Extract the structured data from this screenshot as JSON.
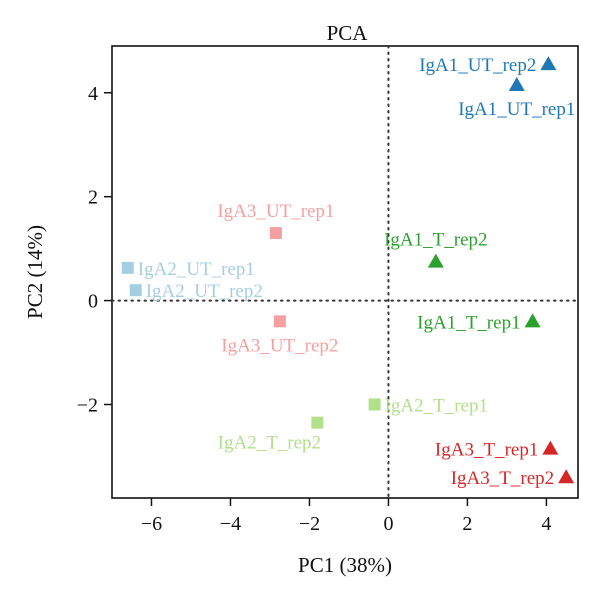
{
  "chart_data": {
    "type": "scatter",
    "title": "PCA",
    "xlabel": "PC1 (38%)",
    "ylabel": "PC2 (14%)",
    "xlim": [
      -7.0,
      4.8
    ],
    "ylim": [
      -3.8,
      4.9
    ],
    "xticks": [
      -6,
      -4,
      -2,
      0,
      2,
      4
    ],
    "yticks": [
      -2,
      0,
      2,
      4
    ],
    "xtick_labels": [
      "−6",
      "−4",
      "−2",
      "0",
      "2",
      "4"
    ],
    "ytick_labels": [
      "−2",
      "0",
      "2",
      "4"
    ],
    "reference_lines": {
      "x": 0,
      "y": 0,
      "style": "dotted"
    },
    "grid": false,
    "points": [
      {
        "label": "IgA1_UT_rep2",
        "x": 4.05,
        "y": 4.55,
        "marker": "triangle",
        "color": "#1f77b4",
        "label_side": "left"
      },
      {
        "label": "IgA1_UT_rep1",
        "x": 3.25,
        "y": 4.15,
        "marker": "triangle",
        "color": "#1f77b4",
        "label_side": "below"
      },
      {
        "label": "IgA1_T_rep2",
        "x": 1.2,
        "y": 0.75,
        "marker": "triangle",
        "color": "#2ca02c",
        "label_side": "above"
      },
      {
        "label": "IgA1_T_rep1",
        "x": 3.65,
        "y": -0.4,
        "marker": "triangle",
        "color": "#2ca02c",
        "label_side": "left"
      },
      {
        "label": "IgA3_T_rep1",
        "x": 4.1,
        "y": -2.85,
        "marker": "triangle",
        "color": "#d62728",
        "label_side": "left"
      },
      {
        "label": "IgA3_T_rep2",
        "x": 4.5,
        "y": -3.4,
        "marker": "triangle",
        "color": "#d62728",
        "label_side": "left"
      },
      {
        "label": "IgA3_UT_rep1",
        "x": -2.85,
        "y": 1.3,
        "marker": "square",
        "color": "#f4a0a0",
        "label_side": "above"
      },
      {
        "label": "IgA3_UT_rep2",
        "x": -2.75,
        "y": -0.4,
        "marker": "square",
        "color": "#f4a0a0",
        "label_side": "below"
      },
      {
        "label": "IgA2_UT_rep1",
        "x": -6.6,
        "y": 0.63,
        "marker": "square",
        "color": "#a6cee3",
        "label_side": "right"
      },
      {
        "label": "IgA2_UT_rep2",
        "x": -6.4,
        "y": 0.2,
        "marker": "square",
        "color": "#a6cee3",
        "label_side": "right"
      },
      {
        "label": "IgA2_T_rep1",
        "x": -0.35,
        "y": -2.0,
        "marker": "square",
        "color": "#b2df8a",
        "label_side": "right"
      },
      {
        "label": "IgA2_T_rep2",
        "x": -1.8,
        "y": -2.35,
        "marker": "square",
        "color": "#b2df8a",
        "label_side": "below-left"
      }
    ]
  },
  "colors": {
    "axis": "#111111",
    "reference_line": "#333333"
  }
}
